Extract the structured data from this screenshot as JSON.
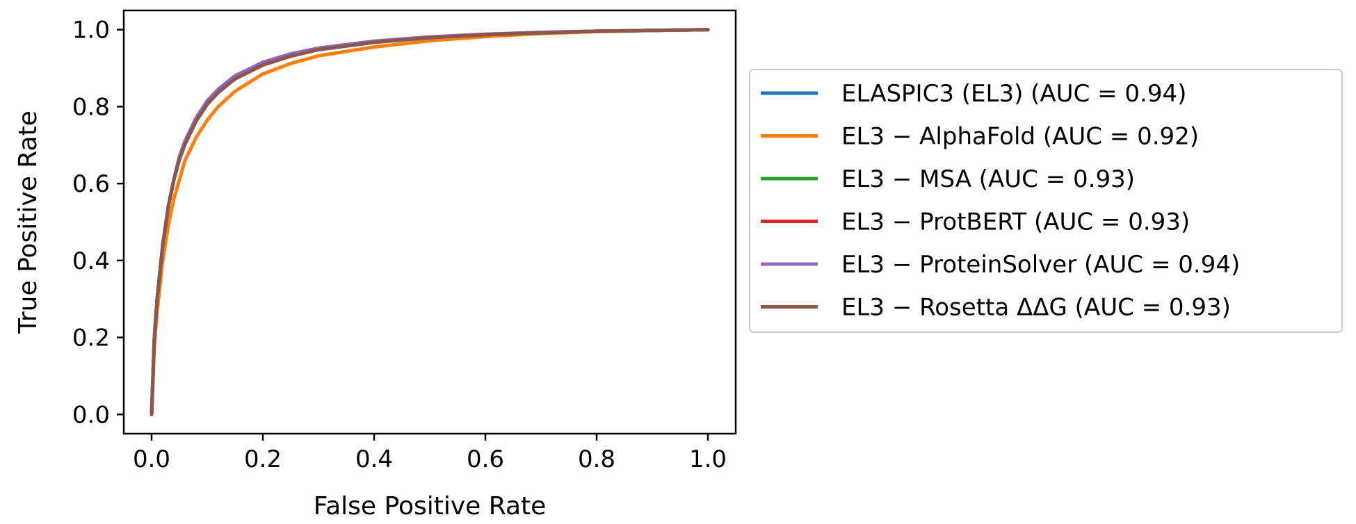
{
  "chart_data": {
    "type": "line",
    "title": "",
    "xlabel": "False Positive Rate",
    "ylabel": "True Positive Rate",
    "xlim": [
      -0.05,
      1.05
    ],
    "ylim": [
      -0.05,
      1.05
    ],
    "xticks": [
      0.0,
      0.2,
      0.4,
      0.6,
      0.8,
      1.0
    ],
    "xtick_labels": [
      "0.0",
      "0.2",
      "0.4",
      "0.6",
      "0.8",
      "1.0"
    ],
    "yticks": [
      0.0,
      0.2,
      0.4,
      0.6,
      0.8,
      1.0
    ],
    "ytick_labels": [
      "0.0",
      "0.2",
      "0.4",
      "0.6",
      "0.8",
      "1.0"
    ],
    "grid": false,
    "legend_position": "outside-right",
    "x": [
      0.0,
      0.005,
      0.01,
      0.02,
      0.03,
      0.04,
      0.05,
      0.06,
      0.08,
      0.1,
      0.12,
      0.15,
      0.2,
      0.25,
      0.3,
      0.4,
      0.5,
      0.6,
      0.7,
      0.8,
      0.9,
      1.0
    ],
    "series": [
      {
        "name": "ELASPIC3 (EL3) (AUC = 0.94)",
        "color": "#1f77b4",
        "values": [
          0.0,
          0.2,
          0.3,
          0.44,
          0.54,
          0.61,
          0.67,
          0.71,
          0.77,
          0.815,
          0.845,
          0.88,
          0.915,
          0.937,
          0.952,
          0.97,
          0.981,
          0.988,
          0.993,
          0.996,
          0.998,
          1.0
        ]
      },
      {
        "name": "EL3 − AlphaFold (AUC = 0.92)",
        "color": "#ff7f0e",
        "values": [
          0.0,
          0.18,
          0.27,
          0.4,
          0.49,
          0.56,
          0.61,
          0.66,
          0.72,
          0.765,
          0.8,
          0.84,
          0.885,
          0.912,
          0.932,
          0.955,
          0.971,
          0.982,
          0.99,
          0.995,
          0.998,
          1.0
        ]
      },
      {
        "name": "EL3 − MSA (AUC = 0.93)",
        "color": "#2ca02c",
        "values": [
          0.0,
          0.2,
          0.3,
          0.44,
          0.54,
          0.61,
          0.665,
          0.705,
          0.765,
          0.81,
          0.84,
          0.875,
          0.91,
          0.933,
          0.949,
          0.968,
          0.98,
          0.987,
          0.992,
          0.996,
          0.998,
          1.0
        ]
      },
      {
        "name": "EL3 − ProtBERT (AUC = 0.93)",
        "color": "#d62728",
        "values": [
          0.0,
          0.2,
          0.3,
          0.44,
          0.54,
          0.61,
          0.665,
          0.705,
          0.765,
          0.81,
          0.84,
          0.875,
          0.91,
          0.933,
          0.949,
          0.968,
          0.98,
          0.987,
          0.992,
          0.996,
          0.998,
          1.0
        ]
      },
      {
        "name": "EL3 − ProteinSolver (AUC = 0.94)",
        "color": "#9467bd",
        "values": [
          0.0,
          0.2,
          0.3,
          0.44,
          0.54,
          0.61,
          0.67,
          0.71,
          0.77,
          0.815,
          0.845,
          0.88,
          0.915,
          0.937,
          0.952,
          0.97,
          0.981,
          0.988,
          0.993,
          0.996,
          0.998,
          1.0
        ]
      },
      {
        "name": "EL3 − Rosetta ΔΔG (AUC = 0.93)",
        "color": "#8c564b",
        "values": [
          0.0,
          0.2,
          0.3,
          0.44,
          0.54,
          0.61,
          0.662,
          0.702,
          0.762,
          0.806,
          0.837,
          0.872,
          0.908,
          0.931,
          0.948,
          0.967,
          0.979,
          0.987,
          0.992,
          0.996,
          0.998,
          1.0
        ]
      }
    ]
  }
}
